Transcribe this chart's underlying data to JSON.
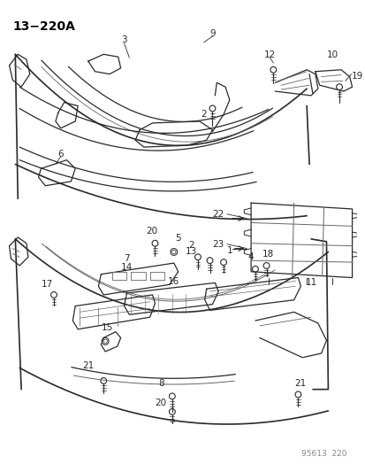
{
  "title": "13−220A",
  "footer": "95613  220",
  "bg_color": "#ffffff",
  "text_color": "#000000",
  "title_fontsize": 10,
  "footer_fontsize": 6.5,
  "line_color": "#2a2a2a",
  "gray_color": "#666666"
}
